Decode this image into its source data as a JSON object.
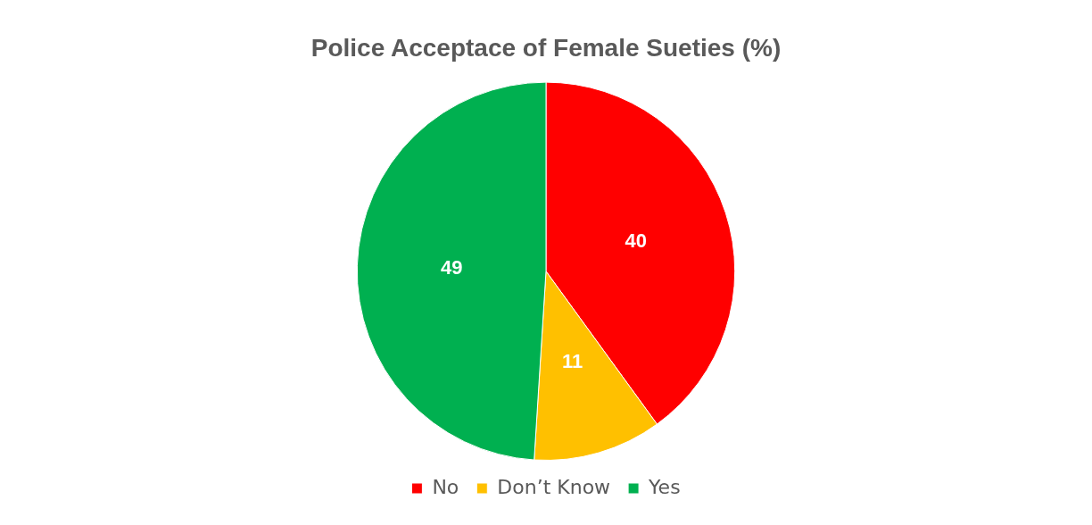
{
  "chart_data": {
    "type": "pie",
    "title": "Police Acceptace of Female Sueties (%)",
    "categories": [
      "No",
      "Don’t Know",
      "Yes"
    ],
    "values": [
      40,
      11,
      49
    ],
    "colors": [
      "#ff0000",
      "#ffc000",
      "#00b050"
    ],
    "data_labels": true,
    "legend": "bottom"
  }
}
